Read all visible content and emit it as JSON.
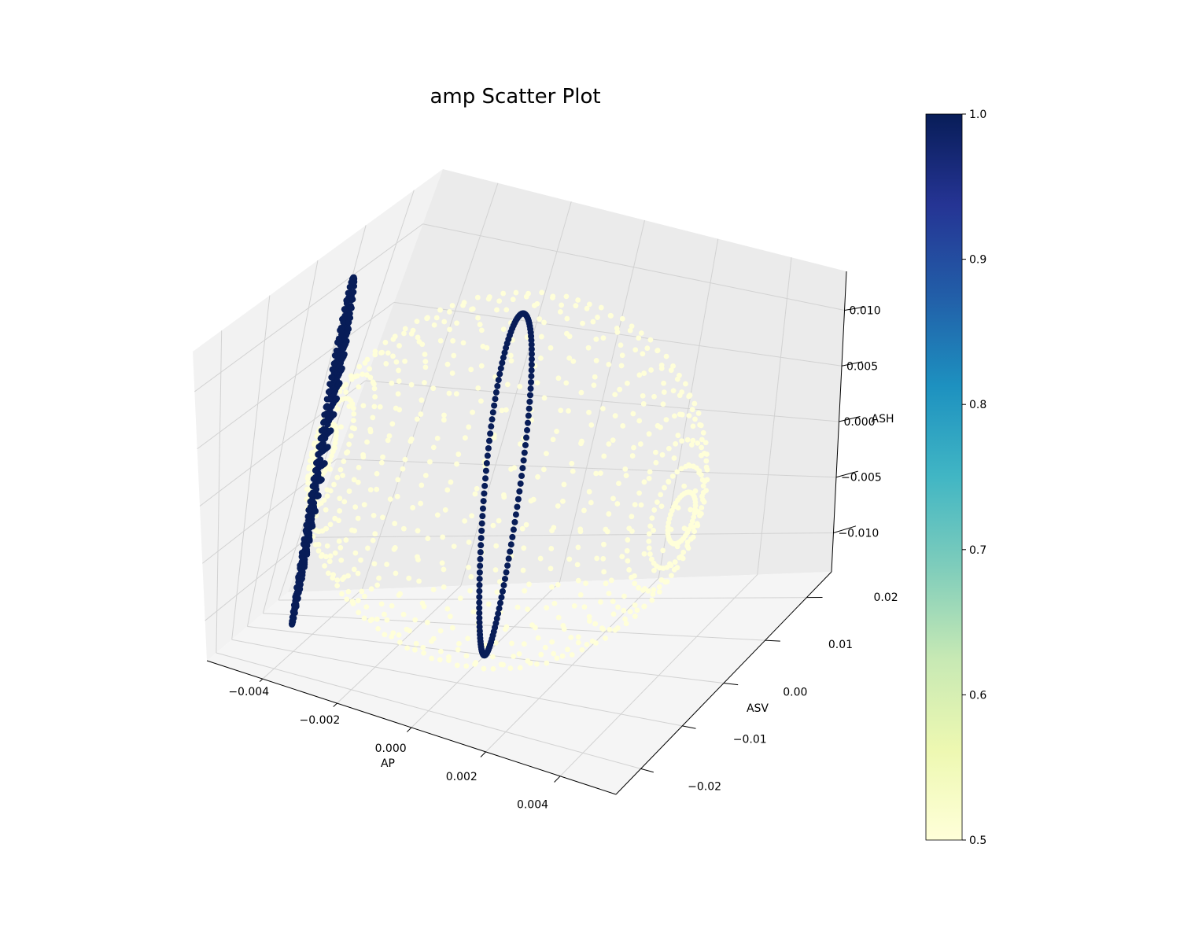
{
  "chart_data": {
    "type": "scatter",
    "projection": "3d",
    "title": "amp Scatter Plot",
    "xlabel": "AP",
    "ylabel": "ASV",
    "zlabel": "ASH",
    "x_ticks": [
      "−0.004",
      "−0.002",
      "0.000",
      "0.002",
      "0.004"
    ],
    "y_ticks": [
      "−0.02",
      "−0.01",
      "0.00",
      "0.01",
      "0.02"
    ],
    "z_ticks": [
      "−0.010",
      "−0.005",
      "0.000",
      "0.005",
      "0.010"
    ],
    "xlim": [
      -0.0055,
      0.0055
    ],
    "ylim": [
      -0.026,
      0.026
    ],
    "zlim": [
      -0.0135,
      0.0135
    ],
    "grid": true,
    "colormap": "YlGnBu",
    "color_range": [
      0.5,
      1.0
    ],
    "colorbar_ticks": [
      "0.5",
      "0.6",
      "0.7",
      "0.8",
      "0.9",
      "1.0"
    ],
    "colors": {
      "low": "#ffffd9",
      "high": "#081d58"
    },
    "series": [
      {
        "shape": "spherical shell",
        "value": 0.5,
        "radius": 0.0225,
        "center": [
          0.0,
          0.0,
          0.0
        ]
      },
      {
        "shape": "ring",
        "value": 1.0,
        "ap": 0.0,
        "radius": 0.0135
      },
      {
        "shape": "disc",
        "value": 1.0,
        "ap": -0.0045,
        "radius": 0.0135
      }
    ]
  }
}
